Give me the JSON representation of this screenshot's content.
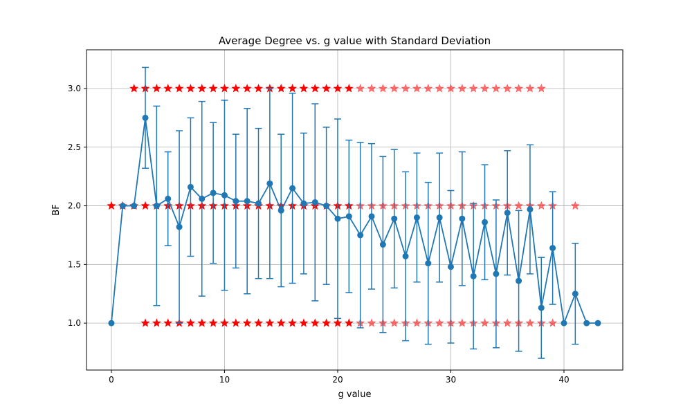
{
  "chart_data": {
    "type": "line",
    "title": "Average Degree vs. g value with Standard Deviation",
    "xlabel": "g value",
    "ylabel": "BF",
    "xlim": [
      -2.2,
      45.2
    ],
    "ylim": [
      0.6,
      3.33
    ],
    "xticks": [
      0,
      10,
      20,
      30,
      40
    ],
    "yticks": [
      1.0,
      1.5,
      2.0,
      2.5,
      3.0
    ],
    "grid": true,
    "series": [
      {
        "kind": "line-with-errorbars",
        "color": "#1f77b4",
        "x": [
          0,
          1,
          2,
          3,
          4,
          5,
          6,
          7,
          8,
          9,
          10,
          11,
          12,
          13,
          14,
          15,
          16,
          17,
          18,
          19,
          20,
          21,
          22,
          23,
          24,
          25,
          26,
          27,
          28,
          29,
          30,
          31,
          32,
          33,
          34,
          35,
          36,
          37,
          38,
          39,
          40,
          41,
          42,
          43
        ],
        "y": [
          1.0,
          2.0,
          2.0,
          2.75,
          2.0,
          2.06,
          1.82,
          2.16,
          2.06,
          2.11,
          2.09,
          2.04,
          2.04,
          2.02,
          2.19,
          1.96,
          2.15,
          2.02,
          2.03,
          2.0,
          1.89,
          1.91,
          1.75,
          1.91,
          1.67,
          1.89,
          1.57,
          1.9,
          1.51,
          1.9,
          1.48,
          1.89,
          1.4,
          1.86,
          1.42,
          1.94,
          1.36,
          1.97,
          1.13,
          1.64,
          1.0,
          1.25,
          1.0,
          1.0
        ],
        "err": [
          0,
          0,
          0,
          0.43,
          0.85,
          0.4,
          0.82,
          0.59,
          0.83,
          0.6,
          0.81,
          0.57,
          0.79,
          0.64,
          0.81,
          0.65,
          0.81,
          0.6,
          0.84,
          0.67,
          0.85,
          0.65,
          0.79,
          0.62,
          0.75,
          0.59,
          0.72,
          0.55,
          0.69,
          0.55,
          0.65,
          0.57,
          0.62,
          0.49,
          0.63,
          0.53,
          0.6,
          0.55,
          0.43,
          0.48,
          0,
          0.43,
          0,
          0
        ]
      },
      {
        "kind": "markers",
        "marker": "star",
        "color": "#ff0000",
        "points": [
          [
            0,
            2
          ],
          [
            1,
            2
          ],
          [
            2,
            2
          ],
          [
            2,
            3
          ],
          [
            3,
            1
          ],
          [
            3,
            2
          ],
          [
            3,
            3
          ],
          [
            4,
            1
          ],
          [
            4,
            2
          ],
          [
            4,
            3
          ],
          [
            5,
            1
          ],
          [
            5,
            2
          ],
          [
            5,
            3
          ],
          [
            6,
            1
          ],
          [
            6,
            2
          ],
          [
            6,
            3
          ],
          [
            7,
            1
          ],
          [
            7,
            2
          ],
          [
            7,
            3
          ],
          [
            8,
            1
          ],
          [
            8,
            2
          ],
          [
            8,
            3
          ],
          [
            9,
            1
          ],
          [
            9,
            2
          ],
          [
            9,
            3
          ],
          [
            10,
            1
          ],
          [
            10,
            2
          ],
          [
            10,
            3
          ],
          [
            11,
            1
          ],
          [
            11,
            2
          ],
          [
            11,
            3
          ],
          [
            12,
            1
          ],
          [
            12,
            2
          ],
          [
            12,
            3
          ],
          [
            13,
            1
          ],
          [
            13,
            2
          ],
          [
            13,
            3
          ],
          [
            14,
            1
          ],
          [
            14,
            2
          ],
          [
            14,
            3
          ],
          [
            15,
            1
          ],
          [
            15,
            2
          ],
          [
            15,
            3
          ],
          [
            16,
            1
          ],
          [
            16,
            2
          ],
          [
            16,
            3
          ],
          [
            17,
            1
          ],
          [
            17,
            2
          ],
          [
            17,
            3
          ],
          [
            18,
            1
          ],
          [
            18,
            2
          ],
          [
            18,
            3
          ],
          [
            19,
            1
          ],
          [
            19,
            2
          ],
          [
            19,
            3
          ],
          [
            20,
            1
          ],
          [
            20,
            2
          ],
          [
            20,
            3
          ],
          [
            21,
            1
          ],
          [
            21,
            2
          ],
          [
            21,
            3
          ],
          [
            22,
            1
          ],
          [
            22,
            2
          ],
          [
            22,
            3
          ],
          [
            23,
            1
          ],
          [
            23,
            2
          ],
          [
            23,
            3
          ],
          [
            24,
            1
          ],
          [
            24,
            2
          ],
          [
            24,
            3
          ],
          [
            25,
            1
          ],
          [
            25,
            2
          ],
          [
            25,
            3
          ],
          [
            26,
            1
          ],
          [
            26,
            2
          ],
          [
            26,
            3
          ],
          [
            27,
            1
          ],
          [
            27,
            2
          ],
          [
            27,
            3
          ],
          [
            28,
            1
          ],
          [
            28,
            2
          ],
          [
            28,
            3
          ],
          [
            29,
            1
          ],
          [
            29,
            2
          ],
          [
            29,
            3
          ],
          [
            30,
            1
          ],
          [
            30,
            2
          ],
          [
            30,
            3
          ],
          [
            31,
            1
          ],
          [
            31,
            2
          ],
          [
            31,
            3
          ],
          [
            32,
            1
          ],
          [
            32,
            2
          ],
          [
            32,
            3
          ],
          [
            33,
            1
          ],
          [
            33,
            2
          ],
          [
            33,
            3
          ],
          [
            34,
            1
          ],
          [
            34,
            2
          ],
          [
            34,
            3
          ],
          [
            35,
            1
          ],
          [
            35,
            2
          ],
          [
            35,
            3
          ],
          [
            36,
            1
          ],
          [
            36,
            2
          ],
          [
            36,
            3
          ],
          [
            37,
            1
          ],
          [
            37,
            2
          ],
          [
            37,
            3
          ],
          [
            38,
            1
          ],
          [
            38,
            2
          ],
          [
            38,
            3
          ],
          [
            39,
            1
          ],
          [
            39,
            2
          ],
          [
            41,
            2
          ]
        ]
      }
    ]
  }
}
